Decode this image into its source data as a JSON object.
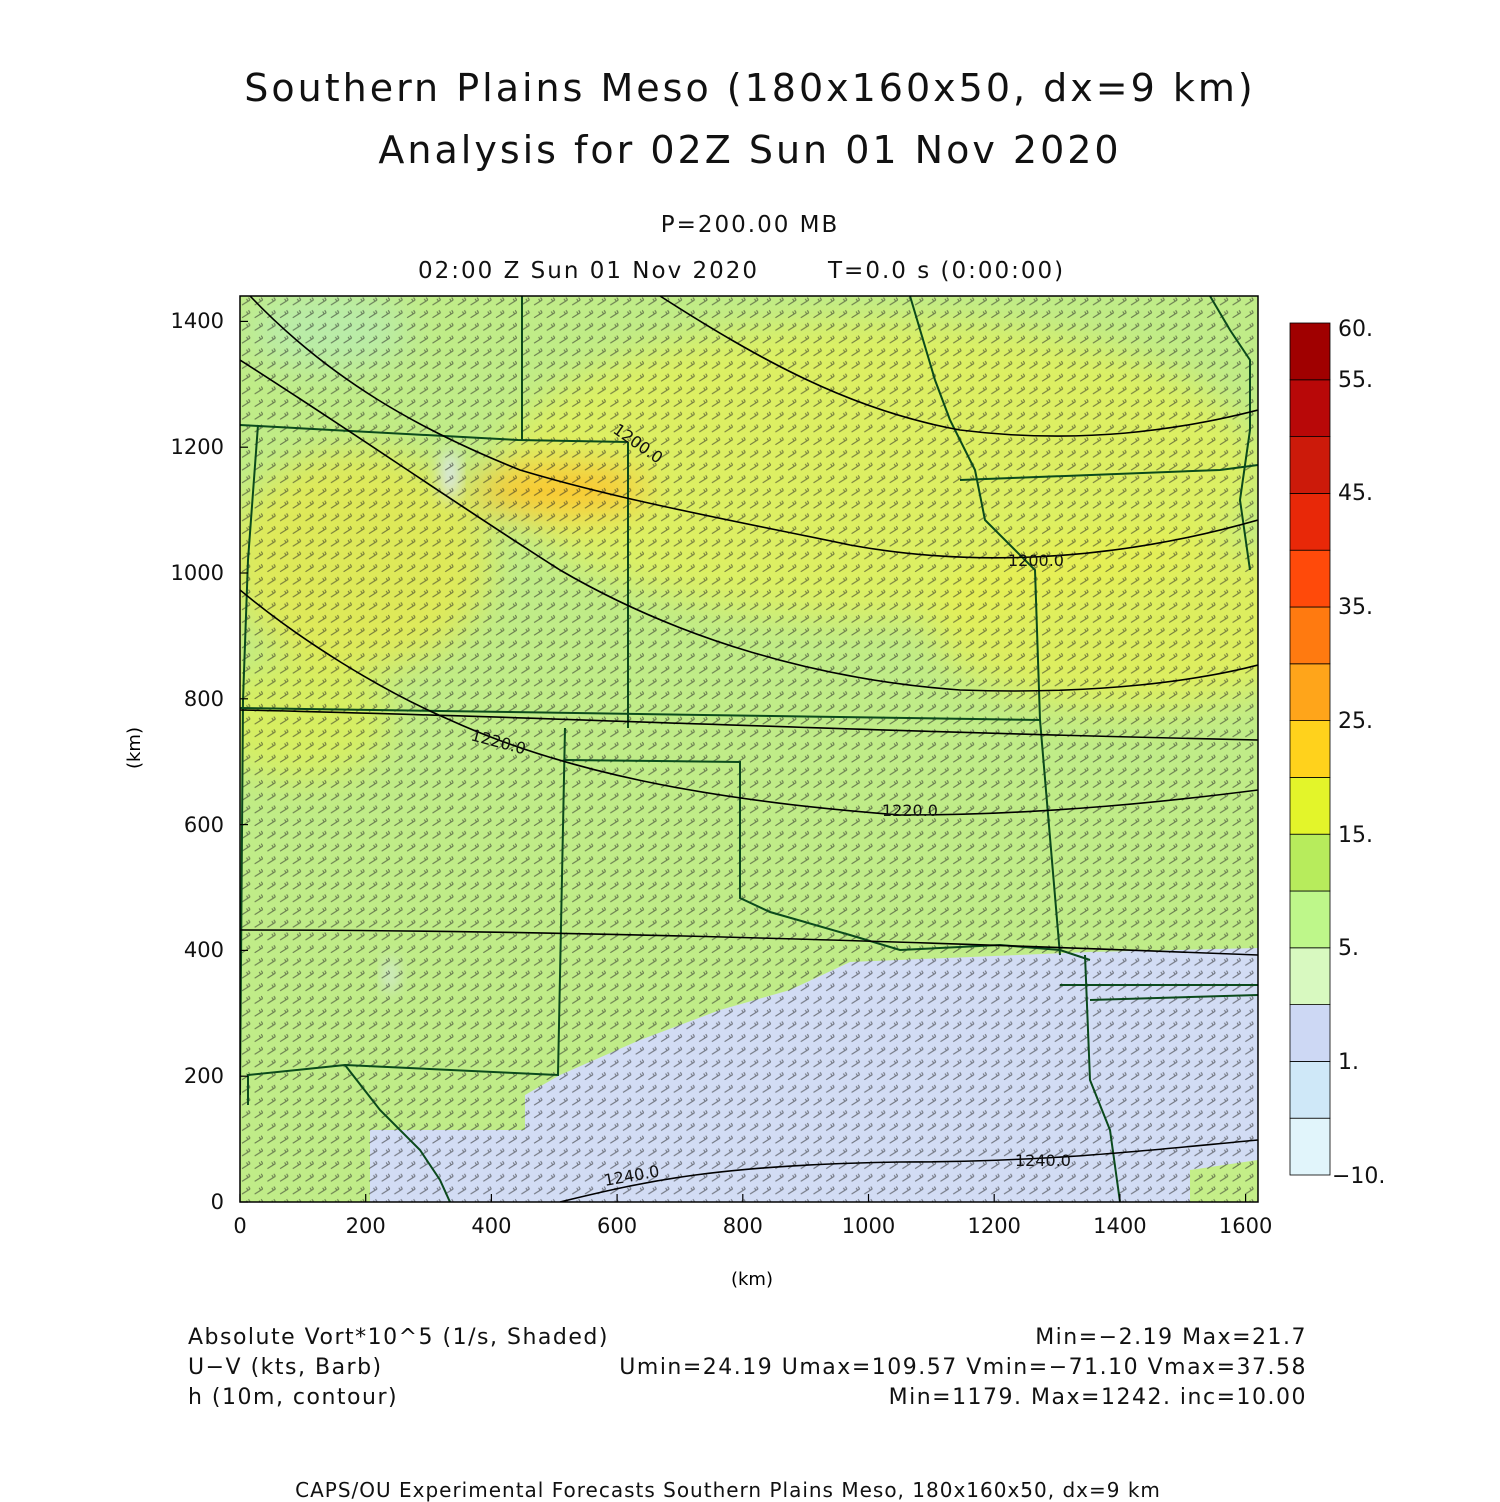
{
  "title": {
    "line1": "Southern Plains Meso (180x160x50, dx=9 km)",
    "line2": "Analysis for 02Z Sun 01 Nov 2020"
  },
  "level": "P=200.00 MB",
  "valid_time": "02:00 Z Sun 01 Nov 2020",
  "forecast_time": "T=0.0 s (0:00:00)",
  "axes": {
    "x_label": "(km)",
    "y_label": "(km)",
    "x_ticks": [
      "0",
      "200",
      "400",
      "600",
      "800",
      "1000",
      "1200",
      "1400",
      "1600"
    ],
    "y_ticks": [
      "0",
      "200",
      "400",
      "600",
      "800",
      "1000",
      "1200",
      "1400"
    ],
    "x_range": [
      0,
      1620
    ],
    "y_range": [
      0,
      1440
    ]
  },
  "colorbar": {
    "labels": [
      "60.",
      "55.",
      "45.",
      "35.",
      "25.",
      "15.",
      "5.",
      "1.",
      "−10."
    ],
    "colors": [
      "#e1f5fb",
      "#cfe8f8",
      "#cdd8f4",
      "#d8f9c0",
      "#bef78a",
      "#b7ec5c",
      "#e3f52a",
      "#ffd21c",
      "#ffa51a",
      "#ff7a10",
      "#ff4a0a",
      "#e82808",
      "#cc1a0a",
      "#b80808",
      "#a00000"
    ]
  },
  "contours": {
    "labels": [
      "1200.0",
      "1200.0",
      "1220.0",
      "1220.0",
      "1240.0",
      "1240.0"
    ]
  },
  "legend": {
    "vort_label": "Absolute Vort*10^5 (1/s, Shaded)",
    "vort_stats": "Min=−2.19 Max=21.7",
    "wind_label": "U−V (kts, Barb)",
    "wind_stats": "Umin=24.19 Umax=109.57 Vmin=−71.10 Vmax=37.58",
    "height_label": "h (10m, contour)",
    "height_stats": "Min=1179. Max=1242. inc=10.00"
  },
  "footer": "CAPS/OU Experimental Forecasts  Southern Plains Meso, 180x160x50, dx=9 km",
  "colors": {
    "map_base": "#c0ec88",
    "border": "#0b4a1c",
    "contour": "#000000",
    "barb": "#222222"
  }
}
